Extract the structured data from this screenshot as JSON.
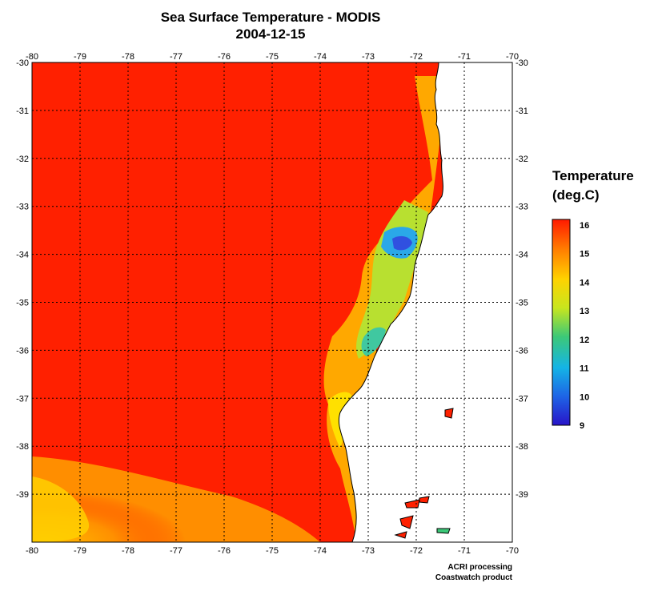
{
  "title": {
    "line1": "Sea Surface Temperature - MODIS",
    "line2": "2004-12-15"
  },
  "map": {
    "lon_ticks": [
      "-80",
      "-79",
      "-78",
      "-77",
      "-76",
      "-75",
      "-74",
      "-73",
      "-72",
      "-71",
      "-70"
    ],
    "lat_ticks": [
      "-30",
      "-31",
      "-32",
      "-33",
      "-34",
      "-35",
      "-36",
      "-37",
      "-38",
      "-39"
    ],
    "lon_range": [
      -80,
      -70
    ],
    "lat_range": [
      -40,
      -30
    ],
    "gridlines": "dashed"
  },
  "colorbar": {
    "title_line1": "Temperature",
    "title_line2": "(deg.C)",
    "labels": [
      "16",
      "15",
      "14",
      "13",
      "12",
      "11",
      "10",
      "9"
    ],
    "min": 9,
    "max": 16,
    "colors": [
      "#ff1a00",
      "#ff7a00",
      "#ffd200",
      "#c8e61e",
      "#3cc878",
      "#14b4e6",
      "#1e64e6",
      "#2814c8"
    ]
  },
  "credits": {
    "line1": "ACRI processing",
    "line2": "Coastwatch product"
  },
  "colors": {
    "ocean_warm": "#ff2000",
    "ocean_cool": "#ffc000",
    "land": "#ffffff",
    "coast": "#000000"
  }
}
